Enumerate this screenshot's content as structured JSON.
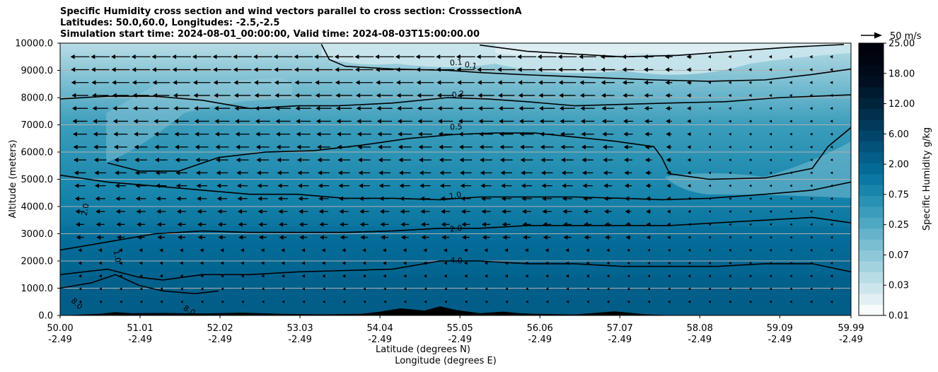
{
  "title": {
    "line1": "Specific Humidity cross section and wind vectors parallel to cross section: CrosssectionA",
    "line2": "Latitudes: 50.0,60.0, Longitudes: -2.5,-2.5",
    "line3": "Simulation start time: 2024-08-01_00:00:00, Valid time: 2024-08-03T15:00:00.00"
  },
  "chart_data": {
    "type": "contourf",
    "title": "Specific Humidity cross section and wind vectors parallel to cross section: CrosssectionA",
    "xlabel_line1": "Latitude (degrees N)",
    "xlabel_line2": "Longitude (degrees E)",
    "ylabel": "Altitude (meters)",
    "xlim": [
      50.0,
      59.99
    ],
    "ylim": [
      0,
      10000
    ],
    "x_ticks": [
      {
        "lat": "50.00",
        "lon": "-2.49",
        "value": 50.0
      },
      {
        "lat": "51.01",
        "lon": "-2.49",
        "value": 51.01
      },
      {
        "lat": "52.02",
        "lon": "-2.49",
        "value": 52.02
      },
      {
        "lat": "53.03",
        "lon": "-2.49",
        "value": 53.03
      },
      {
        "lat": "54.04",
        "lon": "-2.49",
        "value": 54.04
      },
      {
        "lat": "55.05",
        "lon": "-2.49",
        "value": 55.05
      },
      {
        "lat": "56.06",
        "lon": "-2.49",
        "value": 56.06
      },
      {
        "lat": "57.07",
        "lon": "-2.49",
        "value": 57.07
      },
      {
        "lat": "58.08",
        "lon": "-2.49",
        "value": 58.08
      },
      {
        "lat": "59.09",
        "lon": "-2.49",
        "value": 59.09
      },
      {
        "lat": "59.99",
        "lon": "-2.49",
        "value": 59.99
      }
    ],
    "y_ticks": [
      {
        "label": "0.0",
        "value": 0
      },
      {
        "label": "1000.0",
        "value": 1000
      },
      {
        "label": "2000.0",
        "value": 2000
      },
      {
        "label": "3000.0",
        "value": 3000
      },
      {
        "label": "4000.0",
        "value": 4000
      },
      {
        "label": "5000.0",
        "value": 5000
      },
      {
        "label": "6000.0",
        "value": 6000
      },
      {
        "label": "7000.0",
        "value": 7000
      },
      {
        "label": "8000.0",
        "value": 8000
      },
      {
        "label": "9000.0",
        "value": 9000
      },
      {
        "label": "10000.0",
        "value": 10000
      }
    ],
    "horizontal_grid": true,
    "colorbar": {
      "label": "Specific Humidity g/kg",
      "tick_labels": [
        "0.01",
        "0.03",
        "0.07",
        "0.25",
        "0.75",
        "2.00",
        "6.00",
        "12.00",
        "18.00",
        "25.00"
      ],
      "bin_colors": [
        "#f7fbfc",
        "#e2f0f4",
        "#cde6ed",
        "#b8dce6",
        "#a3d2df",
        "#8ec8d8",
        "#79bed1",
        "#64b3ca",
        "#4fa8c2",
        "#3b9dbb",
        "#2891b4",
        "#1785ac",
        "#0a78a2",
        "#046b97",
        "#035f89",
        "#02527a",
        "#02456a",
        "#023a5b",
        "#012f4c",
        "#01243d",
        "#001a30",
        "#001022",
        "#000a18",
        "#000512",
        "#00020c"
      ],
      "edge_color": "#0a1450"
    },
    "wind_key": {
      "label": "50 m/s",
      "speed": 50
    },
    "wind_vectors": {
      "columns": 38,
      "rows": 20,
      "direction": "westward along section (northward component negative)",
      "note": "longest arrows in the upper troposphere west of 56.5N, weakening eastward and toward the surface"
    },
    "contours": [
      {
        "level": 0.1,
        "label": "0.1",
        "polyline": [
          [
            53.3,
            9960
          ],
          [
            53.4,
            9400
          ],
          [
            53.6,
            9150
          ],
          [
            54.2,
            9050
          ],
          [
            54.9,
            9000
          ],
          [
            55.3,
            8920
          ],
          [
            55.8,
            8850
          ],
          [
            56.3,
            8790
          ],
          [
            56.9,
            8720
          ],
          [
            57.5,
            8650
          ],
          [
            58.2,
            8600
          ],
          [
            58.9,
            8650
          ],
          [
            59.5,
            8850
          ],
          [
            59.99,
            9050
          ]
        ]
      },
      {
        "level": 0.1,
        "label": "0.1",
        "polyline": [
          [
            55.3,
            9930
          ],
          [
            55.9,
            9700
          ],
          [
            56.5,
            9600
          ],
          [
            57.1,
            9500
          ],
          [
            57.8,
            9550
          ],
          [
            58.5,
            9700
          ],
          [
            59.2,
            9850
          ],
          [
            59.9,
            9950
          ]
        ]
      },
      {
        "level": 0.2,
        "label": "0.2",
        "polyline": [
          [
            50.0,
            7950
          ],
          [
            50.6,
            8050
          ],
          [
            51.2,
            8050
          ],
          [
            51.8,
            7900
          ],
          [
            52.4,
            7600
          ],
          [
            53.0,
            7700
          ],
          [
            53.5,
            7700
          ],
          [
            54.2,
            7800
          ],
          [
            54.9,
            8000
          ],
          [
            55.4,
            7950
          ],
          [
            55.9,
            7850
          ],
          [
            56.5,
            7700
          ],
          [
            57.1,
            7750
          ],
          [
            57.7,
            7800
          ],
          [
            58.4,
            7850
          ],
          [
            59.1,
            8000
          ],
          [
            59.99,
            8100
          ]
        ]
      },
      {
        "level": 0.5,
        "label": "0.5",
        "polyline": [
          [
            50.6,
            5600
          ],
          [
            51.0,
            5300
          ],
          [
            51.5,
            5300
          ],
          [
            52.0,
            5800
          ],
          [
            52.6,
            6000
          ],
          [
            53.2,
            6050
          ],
          [
            53.8,
            6250
          ],
          [
            54.4,
            6500
          ],
          [
            55.0,
            6650
          ],
          [
            55.5,
            6700
          ],
          [
            56.0,
            6700
          ],
          [
            56.5,
            6550
          ],
          [
            57.0,
            6400
          ],
          [
            57.5,
            6200
          ],
          [
            57.6,
            5800
          ],
          [
            57.7,
            5200
          ],
          [
            58.2,
            5000
          ],
          [
            58.9,
            5050
          ],
          [
            59.5,
            5400
          ],
          [
            59.7,
            6200
          ],
          [
            59.99,
            6900
          ]
        ]
      },
      {
        "level": 1.0,
        "label": "1.0",
        "polyline": [
          [
            50.0,
            5150
          ],
          [
            50.6,
            4900
          ],
          [
            51.2,
            4750
          ],
          [
            51.8,
            4600
          ],
          [
            52.4,
            4450
          ],
          [
            53.0,
            4450
          ],
          [
            53.6,
            4300
          ],
          [
            54.2,
            4300
          ],
          [
            54.8,
            4250
          ],
          [
            55.3,
            4350
          ],
          [
            55.9,
            4350
          ],
          [
            56.5,
            4350
          ],
          [
            57.1,
            4300
          ],
          [
            57.6,
            4250
          ],
          [
            58.2,
            4300
          ],
          [
            58.9,
            4450
          ],
          [
            59.5,
            4600
          ],
          [
            59.99,
            4900
          ]
        ]
      },
      {
        "level": 2.0,
        "label": "2.0",
        "polyline": [
          [
            50.0,
            2400
          ],
          [
            50.6,
            2700
          ],
          [
            51.2,
            3000
          ],
          [
            51.8,
            3100
          ],
          [
            52.4,
            3050
          ],
          [
            53.0,
            3050
          ],
          [
            53.6,
            3050
          ],
          [
            54.2,
            3100
          ],
          [
            54.8,
            3200
          ],
          [
            55.3,
            3200
          ],
          [
            55.9,
            3300
          ],
          [
            56.5,
            3300
          ],
          [
            57.1,
            3300
          ],
          [
            57.7,
            3300
          ],
          [
            58.3,
            3400
          ],
          [
            58.9,
            3500
          ],
          [
            59.5,
            3600
          ],
          [
            59.99,
            3400
          ]
        ]
      },
      {
        "level": 4.0,
        "label": "4.0",
        "polyline": [
          [
            50.0,
            1500
          ],
          [
            50.6,
            1700
          ],
          [
            51.0,
            1400
          ],
          [
            51.3,
            1300
          ],
          [
            51.8,
            1500
          ],
          [
            52.4,
            1500
          ],
          [
            53.0,
            1600
          ],
          [
            53.6,
            1650
          ],
          [
            54.2,
            1700
          ],
          [
            54.8,
            2000
          ],
          [
            55.3,
            2000
          ],
          [
            55.9,
            1900
          ],
          [
            56.5,
            1900
          ],
          [
            57.1,
            1800
          ],
          [
            57.7,
            1800
          ],
          [
            58.3,
            1800
          ],
          [
            58.9,
            1900
          ],
          [
            59.5,
            1900
          ],
          [
            59.99,
            1600
          ]
        ]
      },
      {
        "level": 8.0,
        "label": "8.0",
        "polyline": [
          [
            50.0,
            1000
          ],
          [
            50.4,
            1200
          ],
          [
            50.7,
            1500
          ],
          [
            51.0,
            1100
          ],
          [
            51.3,
            900
          ],
          [
            51.7,
            800
          ],
          [
            52.0,
            900
          ]
        ]
      }
    ],
    "inline_contour_labels": [
      "0.1",
      "0.1",
      "0.2",
      "0.5",
      "1.0",
      "2.0",
      "4.0",
      "2.0",
      "1.0",
      "8.0",
      "8.0"
    ],
    "terrain": {
      "description": "black terrain silhouette along the bottom",
      "profile": [
        [
          50.0,
          0
        ],
        [
          50.5,
          60
        ],
        [
          50.7,
          120
        ],
        [
          50.9,
          80
        ],
        [
          51.3,
          90
        ],
        [
          51.8,
          70
        ],
        [
          52.3,
          100
        ],
        [
          52.8,
          60
        ],
        [
          53.3,
          40
        ],
        [
          53.8,
          60
        ],
        [
          54.0,
          120
        ],
        [
          54.3,
          260
        ],
        [
          54.6,
          180
        ],
        [
          54.8,
          330
        ],
        [
          55.0,
          200
        ],
        [
          55.3,
          80
        ],
        [
          55.6,
          140
        ],
        [
          55.8,
          80
        ],
        [
          56.0,
          60
        ],
        [
          56.5,
          30
        ],
        [
          57.0,
          150
        ],
        [
          57.4,
          40
        ],
        [
          57.8,
          0
        ],
        [
          59.99,
          0
        ]
      ]
    }
  }
}
